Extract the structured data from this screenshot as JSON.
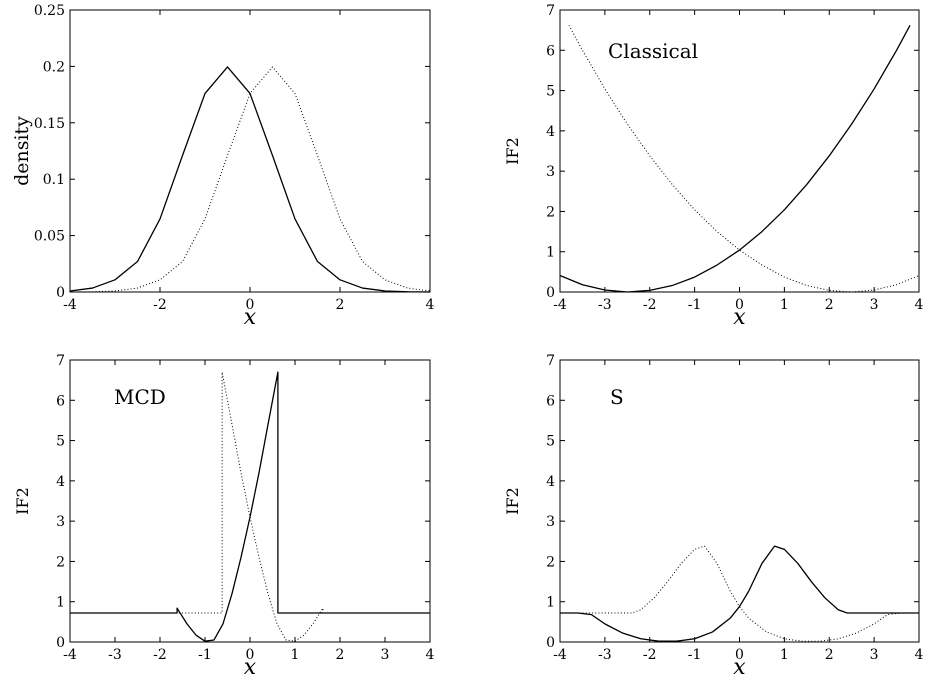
{
  "chart_data": [
    {
      "type": "line",
      "xlabel": "x",
      "ylabel": "density",
      "xlim": [
        -4,
        4
      ],
      "ylim": [
        0,
        0.25
      ],
      "xticks": [
        "-4",
        "-2",
        "0",
        "2",
        "4"
      ],
      "yticks": [
        "0",
        "0.05",
        "0.1",
        "0.15",
        "0.2",
        "0.25"
      ],
      "annotation": "",
      "grid": false,
      "series": [
        {
          "style": "solid",
          "x": [
            -4,
            -3.5,
            -3,
            -2.5,
            -2,
            -1.5,
            -1,
            -0.5,
            0,
            0.5,
            1,
            1.5,
            2,
            2.5,
            3,
            3.5,
            4
          ],
          "y": [
            0.0009,
            0.0035,
            0.0108,
            0.027,
            0.0648,
            0.121,
            0.176,
            0.1995,
            0.176,
            0.121,
            0.0648,
            0.027,
            0.0108,
            0.0035,
            0.0009,
            0.0002,
            0.0
          ]
        },
        {
          "style": "dotted",
          "x": [
            -4,
            -3.5,
            -3,
            -2.5,
            -2,
            -1.5,
            -1,
            -0.5,
            0,
            0.5,
            1,
            1.5,
            2,
            2.5,
            3,
            3.5,
            4
          ],
          "y": [
            0.0,
            0.0002,
            0.0009,
            0.0035,
            0.0108,
            0.027,
            0.0648,
            0.121,
            0.176,
            0.1995,
            0.176,
            0.121,
            0.0648,
            0.027,
            0.0108,
            0.0035,
            0.0009
          ]
        }
      ]
    },
    {
      "type": "line",
      "xlabel": "x",
      "ylabel": "IF2",
      "xlim": [
        -4,
        4
      ],
      "ylim": [
        0,
        7
      ],
      "xticks": [
        "-4",
        "-3",
        "-2",
        "-1",
        "0",
        "1",
        "2",
        "3",
        "4"
      ],
      "yticks": [
        "0",
        "1",
        "2",
        "3",
        "4",
        "5",
        "6",
        "7"
      ],
      "annotation": "Classical",
      "grid": false,
      "series": [
        {
          "style": "solid",
          "x": [
            -4,
            -3.5,
            -3,
            -2.5,
            -2,
            -1.5,
            -1,
            -0.5,
            0,
            0.5,
            1,
            1.5,
            2,
            2.5,
            3,
            3.5,
            3.8
          ],
          "y": [
            0.41,
            0.18,
            0.05,
            0.0,
            0.04,
            0.16,
            0.37,
            0.67,
            1.04,
            1.5,
            2.04,
            2.67,
            3.38,
            4.17,
            5.04,
            6.0,
            6.62
          ]
        },
        {
          "style": "dotted",
          "x": [
            -3.8,
            -3.5,
            -3,
            -2.5,
            -2,
            -1.5,
            -1,
            -0.5,
            0,
            0.5,
            1,
            1.5,
            2,
            2.5,
            3,
            3.5,
            4
          ],
          "y": [
            6.62,
            6.0,
            5.04,
            4.17,
            3.38,
            2.67,
            2.04,
            1.5,
            1.04,
            0.67,
            0.37,
            0.16,
            0.04,
            0.0,
            0.05,
            0.18,
            0.41
          ]
        }
      ]
    },
    {
      "type": "line",
      "xlabel": "x",
      "ylabel": "IF2",
      "xlim": [
        -4,
        4
      ],
      "ylim": [
        0,
        7
      ],
      "xticks": [
        "-4",
        "-3",
        "-2",
        "-1",
        "0",
        "1",
        "2",
        "3",
        "4"
      ],
      "yticks": [
        "0",
        "1",
        "2",
        "3",
        "4",
        "5",
        "6",
        "7"
      ],
      "annotation": "MCD",
      "grid": false,
      "series": [
        {
          "style": "solid",
          "x": [
            -4,
            -1.62,
            -1.62,
            -1.4,
            -1.2,
            -1.0,
            -0.8,
            -0.6,
            -0.4,
            -0.2,
            0,
            0.2,
            0.4,
            0.62,
            0.62,
            4
          ],
          "y": [
            0.72,
            0.72,
            0.84,
            0.45,
            0.17,
            0.02,
            0.05,
            0.45,
            1.2,
            2.1,
            3.1,
            4.2,
            5.4,
            6.7,
            0.72,
            0.72
          ]
        },
        {
          "style": "dotted",
          "x": [
            -4,
            -0.62,
            -0.62,
            -0.4,
            -0.2,
            0,
            0.2,
            0.4,
            0.6,
            0.8,
            1.0,
            1.2,
            1.4,
            1.62,
            1.62,
            4
          ],
          "y": [
            0.72,
            0.72,
            6.7,
            5.4,
            4.2,
            3.1,
            2.1,
            1.2,
            0.45,
            0.05,
            0.02,
            0.17,
            0.45,
            0.84,
            0.72,
            0.72
          ]
        }
      ]
    },
    {
      "type": "line",
      "xlabel": "x",
      "ylabel": "IF2",
      "xlim": [
        -4,
        4
      ],
      "ylim": [
        0,
        7
      ],
      "xticks": [
        "-4",
        "-3",
        "-2",
        "-1",
        "0",
        "1",
        "2",
        "3",
        "4"
      ],
      "yticks": [
        "0",
        "1",
        "2",
        "3",
        "4",
        "5",
        "6",
        "7"
      ],
      "annotation": "S",
      "grid": false,
      "series": [
        {
          "style": "solid",
          "x": [
            -4,
            -3.6,
            -3.3,
            -3.0,
            -2.6,
            -2.2,
            -1.8,
            -1.4,
            -1.0,
            -0.6,
            -0.2,
            0,
            0.2,
            0.5,
            0.78,
            1.0,
            1.3,
            1.6,
            1.9,
            2.2,
            2.4,
            2.6,
            3,
            4
          ],
          "y": [
            0.72,
            0.72,
            0.68,
            0.45,
            0.22,
            0.08,
            0.02,
            0.02,
            0.08,
            0.25,
            0.6,
            0.88,
            1.25,
            1.95,
            2.38,
            2.3,
            1.95,
            1.5,
            1.1,
            0.8,
            0.72,
            0.72,
            0.72,
            0.72
          ]
        },
        {
          "style": "dotted",
          "x": [
            -4,
            -3,
            -2.6,
            -2.4,
            -2.2,
            -1.9,
            -1.6,
            -1.3,
            -1.0,
            -0.78,
            -0.5,
            -0.2,
            0,
            0.2,
            0.6,
            1.0,
            1.4,
            1.8,
            2.2,
            2.6,
            3.0,
            3.3,
            3.6,
            4
          ],
          "y": [
            0.72,
            0.72,
            0.72,
            0.72,
            0.8,
            1.1,
            1.5,
            1.95,
            2.3,
            2.38,
            1.95,
            1.25,
            0.88,
            0.6,
            0.25,
            0.08,
            0.02,
            0.02,
            0.08,
            0.22,
            0.45,
            0.68,
            0.72,
            0.72
          ]
        }
      ]
    }
  ]
}
